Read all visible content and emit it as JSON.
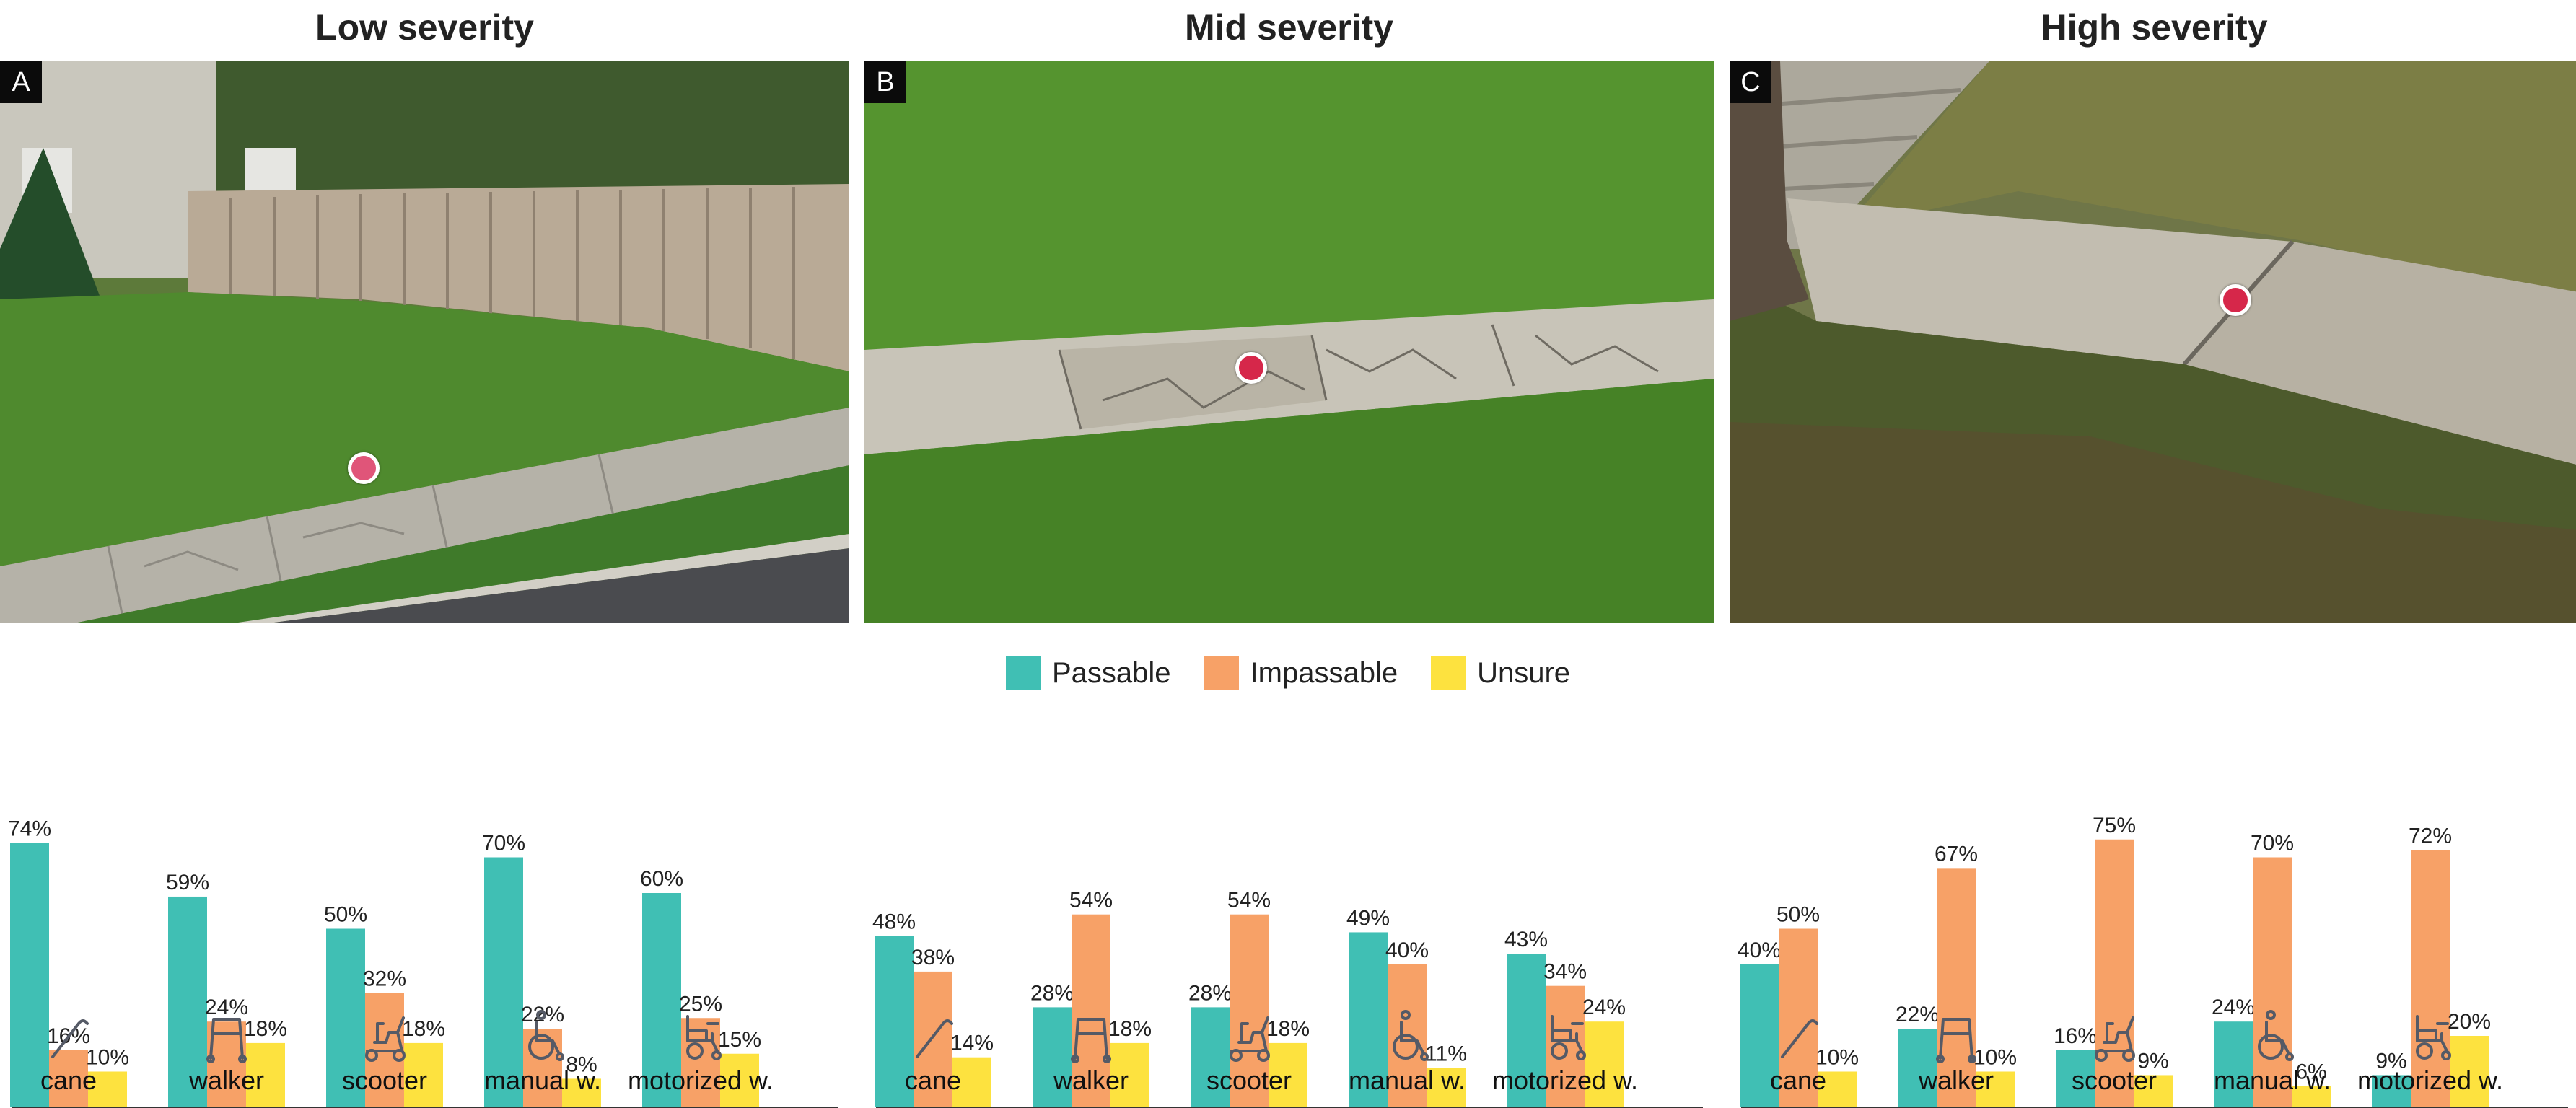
{
  "colors": {
    "passable": "#40bfb4",
    "impassable": "#f7a167",
    "unsure": "#fde23f",
    "marker": "#d6274a",
    "marker_low": "#e05579"
  },
  "legend": [
    {
      "label": "Passable",
      "color": "#40bfb4"
    },
    {
      "label": "Impassable",
      "color": "#f7a167"
    },
    {
      "label": "Unsure",
      "color": "#fde23f"
    }
  ],
  "panels": [
    {
      "title": "Low severity",
      "letter": "A"
    },
    {
      "title": "Mid severity",
      "letter": "B"
    },
    {
      "title": "High severity",
      "letter": "C"
    }
  ],
  "chart_data": [
    {
      "type": "bar",
      "title": "Low severity",
      "categories": [
        "cane",
        "walker",
        "scooter",
        "manual w.",
        "motorized w."
      ],
      "icons": [
        "cane-icon",
        "walker-icon",
        "scooter-icon",
        "manual-wheelchair-icon",
        "motorized-wheelchair-icon"
      ],
      "series": [
        {
          "name": "Passable",
          "values": [
            74,
            59,
            50,
            70,
            60
          ]
        },
        {
          "name": "Impassable",
          "values": [
            16,
            24,
            32,
            22,
            25
          ]
        },
        {
          "name": "Unsure",
          "values": [
            10,
            18,
            18,
            8,
            15
          ]
        }
      ],
      "ylim": [
        0,
        75
      ],
      "xlabel": "",
      "ylabel": ""
    },
    {
      "type": "bar",
      "title": "Mid severity",
      "categories": [
        "cane",
        "walker",
        "scooter",
        "manual w.",
        "motorized w."
      ],
      "icons": [
        "cane-icon",
        "walker-icon",
        "scooter-icon",
        "manual-wheelchair-icon",
        "motorized-wheelchair-icon"
      ],
      "series": [
        {
          "name": "Passable",
          "values": [
            48,
            28,
            28,
            49,
            43
          ]
        },
        {
          "name": "Impassable",
          "values": [
            38,
            54,
            54,
            40,
            34
          ]
        },
        {
          "name": "Unsure",
          "values": [
            14,
            18,
            18,
            11,
            24
          ]
        }
      ],
      "ylim": [
        0,
        75
      ],
      "xlabel": "",
      "ylabel": ""
    },
    {
      "type": "bar",
      "title": "High severity",
      "categories": [
        "cane",
        "walker",
        "scooter",
        "manual w.",
        "motorized w."
      ],
      "icons": [
        "cane-icon",
        "walker-icon",
        "scooter-icon",
        "manual-wheelchair-icon",
        "motorized-wheelchair-icon"
      ],
      "series": [
        {
          "name": "Passable",
          "values": [
            40,
            22,
            16,
            24,
            9
          ]
        },
        {
          "name": "Impassable",
          "values": [
            50,
            67,
            75,
            70,
            72
          ]
        },
        {
          "name": "Unsure",
          "values": [
            10,
            10,
            9,
            6,
            20
          ]
        }
      ],
      "ylim": [
        0,
        75
      ],
      "xlabel": "",
      "ylabel": ""
    }
  ]
}
